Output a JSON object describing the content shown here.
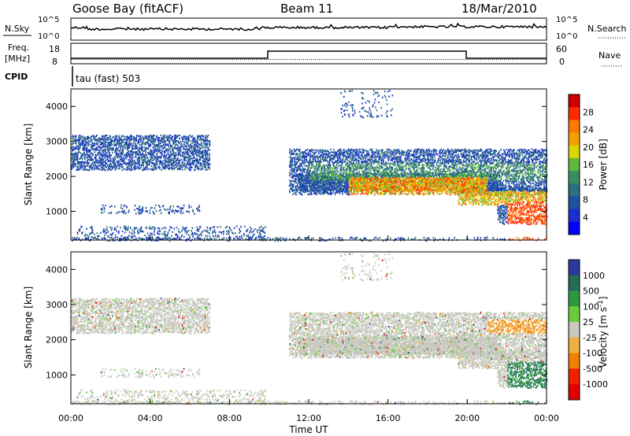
{
  "header": {
    "station": "Goose Bay (fitACF)",
    "beam": "Beam 11",
    "date": "18/Mar/2010"
  },
  "labels": {
    "nsky": "N.Sky",
    "nsearch": "N.Search",
    "freq": "Freq.",
    "mhz": "[MHz]",
    "nave": "Nave",
    "cpid": "CPID",
    "cpid_value": "tau (fast) 503",
    "ylabel": "Slant Range [km]",
    "xlabel": "Time UT"
  },
  "chart_data": {
    "type": "heatmap",
    "x_ticks": [
      "00:00",
      "04:00",
      "08:00",
      "12:00",
      "16:00",
      "20:00",
      "00:00"
    ],
    "y_ticks": [
      "1000",
      "2000",
      "3000",
      "4000"
    ],
    "ylim": [
      180,
      4500
    ],
    "noise_axis": {
      "ticks": [
        "10^5",
        "10^0"
      ],
      "right_ticks": [
        "10^5",
        "10^0"
      ]
    },
    "freq_axis": {
      "ticks": [
        "18",
        "8"
      ],
      "range": [
        8,
        18
      ]
    },
    "nave_axis": {
      "ticks": [
        "60",
        "0"
      ],
      "range": [
        0,
        60
      ]
    },
    "power": {
      "label": "Power [dB]",
      "ticks": [
        "28",
        "24",
        "20",
        "16",
        "12",
        "8",
        "4"
      ],
      "colors": [
        "#cc0000",
        "#ff2a00",
        "#ff7a00",
        "#f0a000",
        "#d8d800",
        "#5fb83a",
        "#3a8f60",
        "#2a7080",
        "#2050a0",
        "#1a2ecc",
        "#0000ff"
      ]
    },
    "velocity": {
      "label": "Velocity [m s",
      "label_sup": "-1",
      "label_end": "]",
      "ticks": [
        "1000",
        "500",
        "100",
        "25",
        "-25",
        "-100",
        "-500",
        "-1000"
      ],
      "colors": [
        "#2a3a9a",
        "#236c5a",
        "#2e9a40",
        "#6acc3a",
        "#c8c8c0",
        "#f0b040",
        "#f08000",
        "#f02000",
        "#e00000"
      ]
    }
  }
}
